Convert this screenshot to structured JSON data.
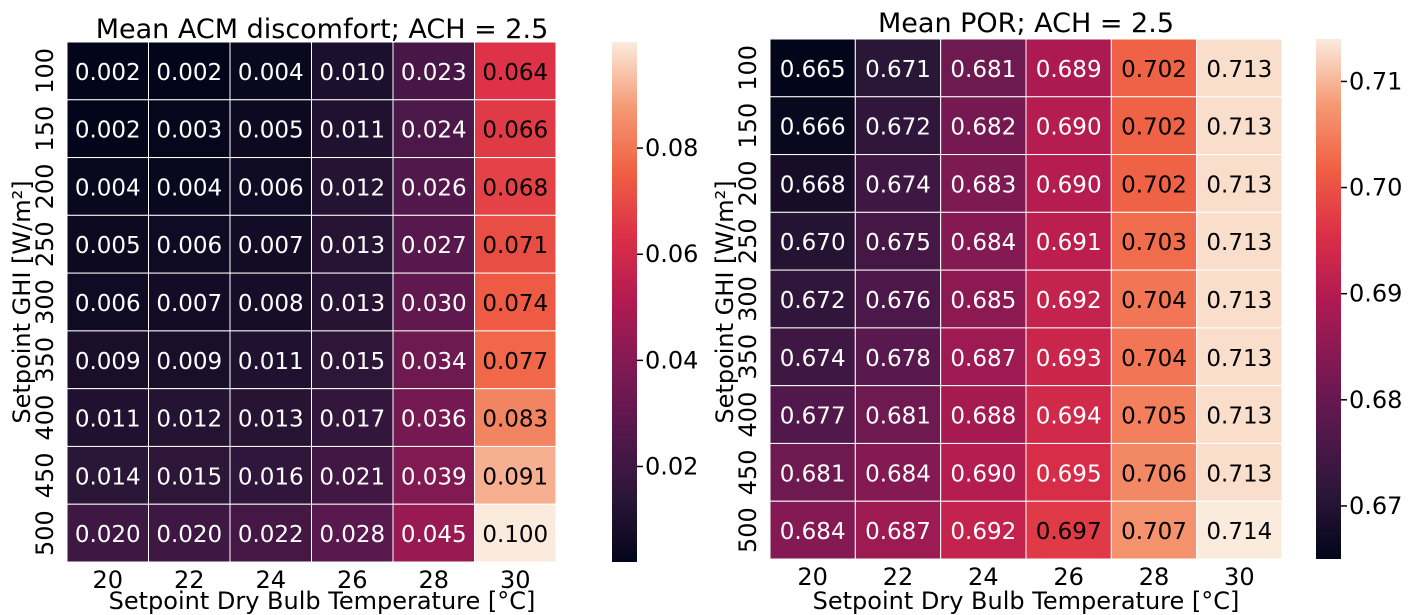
{
  "chart_data": [
    {
      "type": "heatmap",
      "title": "Mean ACM discomfort; ACH = 2.5",
      "xlabel": "Setpoint Dry Bulb Temperature [°C]",
      "ylabel": "Setpoint GHI [W/m²]",
      "x_categories": [
        "20",
        "22",
        "24",
        "26",
        "28",
        "30"
      ],
      "y_categories": [
        "100",
        "150",
        "200",
        "250",
        "300",
        "350",
        "400",
        "450",
        "500"
      ],
      "values": [
        [
          0.002,
          0.002,
          0.004,
          0.01,
          0.023,
          0.064
        ],
        [
          0.002,
          0.003,
          0.005,
          0.011,
          0.024,
          0.066
        ],
        [
          0.004,
          0.004,
          0.006,
          0.012,
          0.026,
          0.068
        ],
        [
          0.005,
          0.006,
          0.007,
          0.013,
          0.027,
          0.071
        ],
        [
          0.006,
          0.007,
          0.008,
          0.013,
          0.03,
          0.074
        ],
        [
          0.009,
          0.009,
          0.011,
          0.015,
          0.034,
          0.077
        ],
        [
          0.011,
          0.012,
          0.013,
          0.017,
          0.036,
          0.083
        ],
        [
          0.014,
          0.015,
          0.016,
          0.021,
          0.039,
          0.091
        ],
        [
          0.02,
          0.02,
          0.022,
          0.028,
          0.045,
          0.1
        ]
      ],
      "value_labels": [
        [
          "0.002",
          "0.002",
          "0.004",
          "0.010",
          "0.023",
          "0.064"
        ],
        [
          "0.002",
          "0.003",
          "0.005",
          "0.011",
          "0.024",
          "0.066"
        ],
        [
          "0.004",
          "0.004",
          "0.006",
          "0.012",
          "0.026",
          "0.068"
        ],
        [
          "0.005",
          "0.006",
          "0.007",
          "0.013",
          "0.027",
          "0.071"
        ],
        [
          "0.006",
          "0.007",
          "0.008",
          "0.013",
          "0.030",
          "0.074"
        ],
        [
          "0.009",
          "0.009",
          "0.011",
          "0.015",
          "0.034",
          "0.077"
        ],
        [
          "0.011",
          "0.012",
          "0.013",
          "0.017",
          "0.036",
          "0.083"
        ],
        [
          "0.014",
          "0.015",
          "0.016",
          "0.021",
          "0.039",
          "0.091"
        ],
        [
          "0.020",
          "0.020",
          "0.022",
          "0.028",
          "0.045",
          "0.100"
        ]
      ],
      "colorscale": "rocket",
      "vmin": 0.002,
      "vmax": 0.1,
      "colorbar_ticks": [
        0.02,
        0.04,
        0.06,
        0.08
      ],
      "colorbar_tick_labels": [
        "0.02",
        "0.04",
        "0.06",
        "0.08"
      ],
      "grid": true,
      "legend": "colorbar-right"
    },
    {
      "type": "heatmap",
      "title": "Mean POR; ACH = 2.5",
      "xlabel": "Setpoint Dry Bulb Temperature [°C]",
      "ylabel": "Setpoint GHI [W/m²]",
      "x_categories": [
        "20",
        "22",
        "24",
        "26",
        "28",
        "30"
      ],
      "y_categories": [
        "100",
        "150",
        "200",
        "250",
        "300",
        "350",
        "400",
        "450",
        "500"
      ],
      "values": [
        [
          0.665,
          0.671,
          0.681,
          0.689,
          0.702,
          0.713
        ],
        [
          0.666,
          0.672,
          0.682,
          0.69,
          0.702,
          0.713
        ],
        [
          0.668,
          0.674,
          0.683,
          0.69,
          0.702,
          0.713
        ],
        [
          0.67,
          0.675,
          0.684,
          0.691,
          0.703,
          0.713
        ],
        [
          0.672,
          0.676,
          0.685,
          0.692,
          0.704,
          0.713
        ],
        [
          0.674,
          0.678,
          0.687,
          0.693,
          0.704,
          0.713
        ],
        [
          0.677,
          0.681,
          0.688,
          0.694,
          0.705,
          0.713
        ],
        [
          0.681,
          0.684,
          0.69,
          0.695,
          0.706,
          0.713
        ],
        [
          0.684,
          0.687,
          0.692,
          0.697,
          0.707,
          0.714
        ]
      ],
      "value_labels": [
        [
          "0.665",
          "0.671",
          "0.681",
          "0.689",
          "0.702",
          "0.713"
        ],
        [
          "0.666",
          "0.672",
          "0.682",
          "0.690",
          "0.702",
          "0.713"
        ],
        [
          "0.668",
          "0.674",
          "0.683",
          "0.690",
          "0.702",
          "0.713"
        ],
        [
          "0.670",
          "0.675",
          "0.684",
          "0.691",
          "0.703",
          "0.713"
        ],
        [
          "0.672",
          "0.676",
          "0.685",
          "0.692",
          "0.704",
          "0.713"
        ],
        [
          "0.674",
          "0.678",
          "0.687",
          "0.693",
          "0.704",
          "0.713"
        ],
        [
          "0.677",
          "0.681",
          "0.688",
          "0.694",
          "0.705",
          "0.713"
        ],
        [
          "0.681",
          "0.684",
          "0.690",
          "0.695",
          "0.706",
          "0.713"
        ],
        [
          "0.684",
          "0.687",
          "0.692",
          "0.697",
          "0.707",
          "0.714"
        ]
      ],
      "colorscale": "rocket",
      "vmin": 0.665,
      "vmax": 0.714,
      "colorbar_ticks": [
        0.67,
        0.68,
        0.69,
        0.7,
        0.71
      ],
      "colorbar_tick_labels": [
        "0.67",
        "0.68",
        "0.69",
        "0.70",
        "0.71"
      ],
      "grid": true,
      "legend": "colorbar-right"
    }
  ]
}
